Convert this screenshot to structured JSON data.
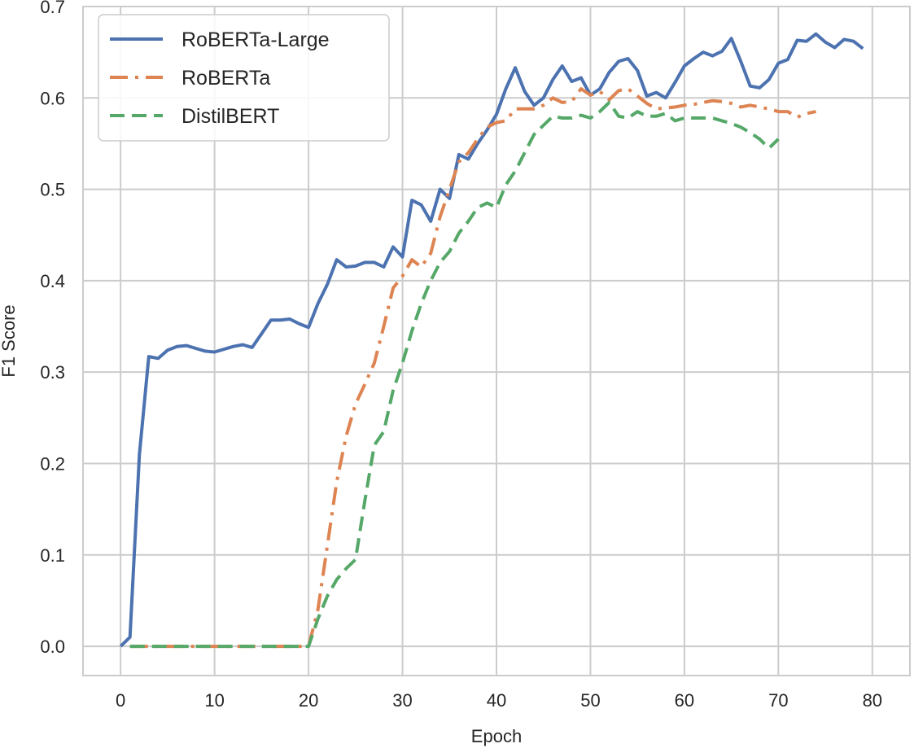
{
  "chart_data": {
    "type": "line",
    "xlabel": "Epoch",
    "ylabel": "F1 Score",
    "xlim": [
      -4,
      84
    ],
    "ylim": [
      -0.032,
      0.7
    ],
    "xticks": [
      0,
      10,
      20,
      30,
      40,
      50,
      60,
      70,
      80
    ],
    "xtick_labels": [
      "0",
      "10",
      "20",
      "30",
      "40",
      "50",
      "60",
      "70",
      "80"
    ],
    "yticks": [
      0.0,
      0.1,
      0.2,
      0.3,
      0.4,
      0.5,
      0.6,
      0.7
    ],
    "ytick_labels": [
      "0.0",
      "0.1",
      "0.2",
      "0.3",
      "0.4",
      "0.5",
      "0.6",
      "0.7"
    ],
    "grid": true,
    "legend_position": "top-left",
    "series": [
      {
        "name": "RoBERTa-Large",
        "color": "#4c72b0",
        "style": "solid",
        "x": [
          0,
          1,
          2,
          3,
          4,
          5,
          6,
          7,
          8,
          9,
          10,
          11,
          12,
          13,
          14,
          15,
          16,
          17,
          18,
          19,
          20,
          21,
          22,
          23,
          24,
          25,
          26,
          27,
          28,
          29,
          30,
          31,
          32,
          33,
          34,
          35,
          36,
          37,
          38,
          39,
          40,
          41,
          42,
          43,
          44,
          45,
          46,
          47,
          48,
          49,
          50,
          51,
          52,
          53,
          54,
          55,
          56,
          57,
          58,
          59,
          60,
          61,
          62,
          63,
          64,
          65,
          66,
          67,
          68,
          69,
          70,
          71,
          72,
          73,
          74,
          75,
          76,
          77,
          78,
          79
        ],
        "values": [
          0.0,
          0.01,
          0.21,
          0.317,
          0.315,
          0.324,
          0.328,
          0.329,
          0.326,
          0.323,
          0.322,
          0.325,
          0.328,
          0.33,
          0.327,
          0.342,
          0.357,
          0.357,
          0.358,
          0.353,
          0.349,
          0.375,
          0.396,
          0.423,
          0.415,
          0.416,
          0.42,
          0.42,
          0.415,
          0.437,
          0.426,
          0.488,
          0.483,
          0.465,
          0.5,
          0.49,
          0.538,
          0.533,
          0.55,
          0.565,
          0.582,
          0.61,
          0.633,
          0.607,
          0.592,
          0.6,
          0.62,
          0.635,
          0.618,
          0.622,
          0.603,
          0.61,
          0.628,
          0.64,
          0.643,
          0.63,
          0.602,
          0.606,
          0.6,
          0.617,
          0.635,
          0.643,
          0.65,
          0.646,
          0.651,
          0.665,
          0.64,
          0.613,
          0.611,
          0.62,
          0.638,
          0.642,
          0.663,
          0.662,
          0.67,
          0.661,
          0.655,
          0.664,
          0.662,
          0.654
        ]
      },
      {
        "name": "RoBERTa",
        "color": "#dd8452",
        "style": "dashdot",
        "x": [
          1,
          2,
          3,
          4,
          5,
          6,
          7,
          8,
          9,
          10,
          11,
          12,
          13,
          14,
          15,
          16,
          17,
          18,
          19,
          20,
          21,
          22,
          23,
          24,
          25,
          26,
          27,
          28,
          29,
          30,
          31,
          32,
          33,
          34,
          35,
          36,
          37,
          38,
          39,
          40,
          41,
          42,
          43,
          44,
          45,
          46,
          47,
          48,
          49,
          50,
          51,
          52,
          53,
          54,
          55,
          56,
          57,
          58,
          59,
          60,
          61,
          62,
          63,
          64,
          65,
          66,
          67,
          68,
          69,
          70,
          71,
          72,
          73,
          74
        ],
        "values": [
          0.0,
          0.0,
          0.0,
          0.0,
          0.0,
          0.0,
          0.0,
          0.0,
          0.0,
          0.0,
          0.0,
          0.0,
          0.0,
          0.0,
          0.0,
          0.0,
          0.0,
          0.0,
          0.0,
          0.0,
          0.04,
          0.11,
          0.18,
          0.23,
          0.265,
          0.287,
          0.31,
          0.35,
          0.392,
          0.405,
          0.423,
          0.415,
          0.43,
          0.47,
          0.5,
          0.53,
          0.54,
          0.555,
          0.568,
          0.573,
          0.575,
          0.588,
          0.588,
          0.588,
          0.592,
          0.6,
          0.595,
          0.596,
          0.61,
          0.603,
          0.607,
          0.598,
          0.608,
          0.61,
          0.602,
          0.594,
          0.588,
          0.589,
          0.59,
          0.592,
          0.593,
          0.595,
          0.597,
          0.596,
          0.594,
          0.59,
          0.592,
          0.59,
          0.588,
          0.585,
          0.585,
          0.579,
          0.583,
          0.585
        ]
      },
      {
        "name": "DistilBERT",
        "color": "#55a868",
        "style": "dashed",
        "x": [
          1,
          2,
          3,
          4,
          5,
          6,
          7,
          8,
          9,
          10,
          11,
          12,
          13,
          14,
          15,
          16,
          17,
          18,
          19,
          20,
          21,
          22,
          23,
          24,
          25,
          26,
          27,
          28,
          29,
          30,
          31,
          32,
          33,
          34,
          35,
          36,
          37,
          38,
          39,
          40,
          41,
          42,
          43,
          44,
          45,
          46,
          47,
          48,
          49,
          50,
          51,
          52,
          53,
          54,
          55,
          56,
          57,
          58,
          59,
          60,
          61,
          62,
          63,
          64,
          65,
          66,
          67,
          68,
          69,
          70
        ],
        "values": [
          0.0,
          0.0,
          0.0,
          0.0,
          0.0,
          0.0,
          0.0,
          0.0,
          0.0,
          0.0,
          0.0,
          0.0,
          0.0,
          0.0,
          0.0,
          0.0,
          0.0,
          0.0,
          0.0,
          0.0,
          0.03,
          0.055,
          0.073,
          0.085,
          0.095,
          0.16,
          0.22,
          0.235,
          0.28,
          0.31,
          0.345,
          0.375,
          0.4,
          0.42,
          0.432,
          0.452,
          0.465,
          0.48,
          0.485,
          0.48,
          0.505,
          0.52,
          0.54,
          0.56,
          0.57,
          0.58,
          0.578,
          0.578,
          0.581,
          0.578,
          0.585,
          0.595,
          0.58,
          0.578,
          0.585,
          0.58,
          0.58,
          0.583,
          0.575,
          0.578,
          0.578,
          0.578,
          0.578,
          0.575,
          0.572,
          0.568,
          0.562,
          0.555,
          0.545,
          0.555
        ]
      }
    ]
  }
}
